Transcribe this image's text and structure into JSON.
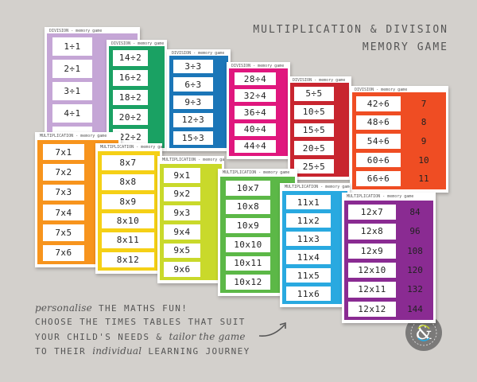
{
  "title": {
    "line1": "MULTIPLICATION & DIVISION",
    "line2": "MEMORY GAME"
  },
  "tagline": {
    "line1_prefix": "personalise",
    "line1_suffix": " THE MATHS FUN!",
    "line2": "CHOOSE THE TIMES TABLES THAT SUIT",
    "line3_prefix": "YOUR CHILD'S NEEDS & ",
    "line3_em": "tailor the game",
    "line4_prefix": "TO THEIR ",
    "line4_em": "individual",
    "line4_suffix": " LEARNING JOURNEY"
  },
  "header_labels": {
    "division": "DIVISION - memory game",
    "multiplication": "MULTIPLICATION - memory game"
  },
  "colors": {
    "background": "#d3d0cc",
    "purple_light": "#c5a6d6",
    "green": "#1aa163",
    "blue": "#1b76b8",
    "magenta": "#e0177e",
    "red": "#c8252f",
    "orange_red": "#ef4d23",
    "orange": "#f7941d",
    "yellow": "#f5d016",
    "yellow_green": "#c9d92b",
    "lime": "#5cb847",
    "sky": "#29a9e0",
    "violet": "#8a2b92"
  },
  "sheets": {
    "s1": [
      "1÷1",
      "2÷1",
      "3÷1",
      "4÷1",
      "5÷1"
    ],
    "s2": [
      "14÷2",
      "16÷2",
      "18÷2",
      "20÷2",
      "22÷2"
    ],
    "s3": [
      "3÷3",
      "6÷3",
      "9÷3",
      "12÷3",
      "15÷3"
    ],
    "s4": [
      "28÷4",
      "32÷4",
      "36÷4",
      "40÷4",
      "44÷4"
    ],
    "s5": [
      "5÷5",
      "10÷5",
      "15÷5",
      "20÷5",
      "25÷5"
    ],
    "s6": [
      "42÷6",
      "48÷6",
      "54÷6",
      "60÷6",
      "66÷6"
    ],
    "s6_answers": [
      "7",
      "8",
      "9",
      "10",
      "11"
    ],
    "s7": [
      "7x1",
      "7x2",
      "7x3",
      "7x4",
      "7x5",
      "7x6"
    ],
    "s8": [
      "8x7",
      "8x8",
      "8x9",
      "8x10",
      "8x11",
      "8x12"
    ],
    "s9": [
      "9x1",
      "9x2",
      "9x3",
      "9x4",
      "9x5",
      "9x6"
    ],
    "s10": [
      "10x7",
      "10x8",
      "10x9",
      "10x10",
      "10x11",
      "10x12"
    ],
    "s11": [
      "11x1",
      "11x2",
      "11x3",
      "11x4",
      "11x5",
      "11x6"
    ],
    "s12": [
      "12x7",
      "12x8",
      "12x9",
      "12x10",
      "12x11",
      "12x12"
    ],
    "s12_answers": [
      "84",
      "96",
      "108",
      "120",
      "132",
      "144"
    ]
  },
  "logo_icon": "ampersand-logo-icon",
  "arrow_icon": "curved-arrow-icon"
}
